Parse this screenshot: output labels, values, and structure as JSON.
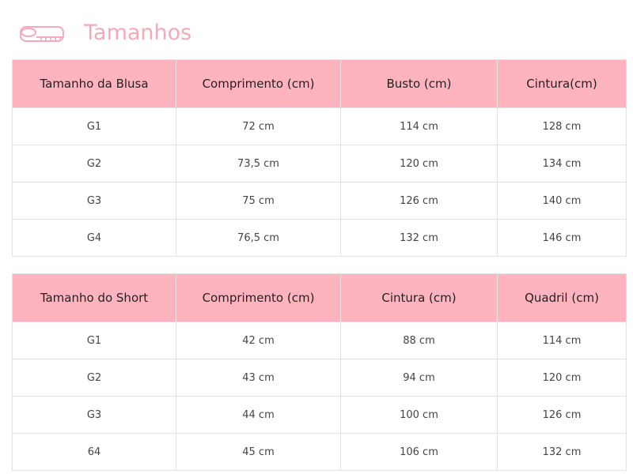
{
  "header": {
    "title": "Tamanhos"
  },
  "tables": [
    {
      "columns": [
        "Tamanho da Blusa",
        "Comprimento (cm)",
        "Busto (cm)",
        "Cintura(cm)"
      ],
      "rows": [
        [
          "G1",
          "72 cm",
          "114 cm",
          "128 cm"
        ],
        [
          "G2",
          "73,5 cm",
          "120 cm",
          "134 cm"
        ],
        [
          "G3",
          "75 cm",
          "126 cm",
          "140 cm"
        ],
        [
          "G4",
          "76,5 cm",
          "132 cm",
          "146 cm"
        ]
      ]
    },
    {
      "columns": [
        "Tamanho do Short",
        "Comprimento (cm)",
        "Cintura (cm)",
        "Quadril (cm)"
      ],
      "rows": [
        [
          "G1",
          "42 cm",
          "88 cm",
          "114 cm"
        ],
        [
          "G2",
          "43 cm",
          "94 cm",
          "120 cm"
        ],
        [
          "G3",
          "44 cm",
          "100 cm",
          "126 cm"
        ],
        [
          "64",
          "45 cm",
          "106 cm",
          "132 cm"
        ]
      ]
    }
  ]
}
